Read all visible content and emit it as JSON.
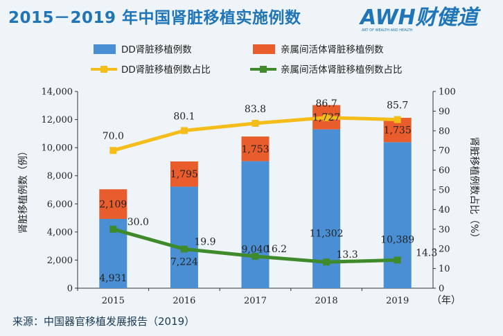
{
  "header": {
    "title": "2015－2019 年中国肾脏移植实施例数",
    "brand_text": "AWH财健道",
    "brand_subtitle": "ART OF WEALTH AND HEALTH"
  },
  "footer": {
    "source": "来源：中国器官移植发展报告（2019）"
  },
  "colors": {
    "title": "#1f75b8",
    "dd_bar": "#4a8fd4",
    "living_bar": "#e95c2c",
    "dd_line": "#f4bd1a",
    "living_line": "#3f8a2a",
    "background": "#eef4f7"
  },
  "chart_data": {
    "type": "bar+line",
    "categories": [
      "2015",
      "2016",
      "2017",
      "2018",
      "2019"
    ],
    "x_unit": "（年）",
    "left_axis": {
      "label": "肾脏移植例数（例）",
      "range": [
        0,
        14000
      ],
      "ticks": [
        "0",
        "2,000",
        "4,000",
        "6,000",
        "8,000",
        "10,000",
        "12,000",
        "14,000"
      ]
    },
    "right_axis": {
      "label": "肾脏移植例数占比（%）",
      "range": [
        0,
        100
      ],
      "ticks": [
        "0",
        "10",
        "20",
        "30",
        "40",
        "50",
        "60",
        "70",
        "80",
        "90",
        "100"
      ]
    },
    "legend_placement": "top",
    "bar_series": [
      {
        "name": "DD肾脏移植例数",
        "values": [
          4931,
          7224,
          9040,
          11302,
          10389
        ],
        "labels": [
          "4,931",
          "7,224",
          "9,040",
          "11,302",
          "10,389"
        ]
      },
      {
        "name": "亲属间活体肾脏移植例数",
        "values": [
          2109,
          1795,
          1753,
          1727,
          1735
        ],
        "labels": [
          "2,109",
          "1,795",
          "1,753",
          "1,727",
          "1,735"
        ]
      }
    ],
    "line_series": [
      {
        "name": "DD肾脏移植例数占比",
        "values": [
          70.0,
          80.1,
          83.8,
          86.7,
          85.7
        ],
        "labels": [
          "70.0",
          "80.1",
          "83.8",
          "86.7",
          "85.7"
        ]
      },
      {
        "name": "亲属间活体肾脏移植例数占比",
        "values": [
          30.0,
          19.9,
          16.2,
          13.3,
          14.3
        ],
        "labels": [
          "30.0",
          "19.9",
          "16.2",
          "13.3",
          "14.3"
        ]
      }
    ]
  }
}
